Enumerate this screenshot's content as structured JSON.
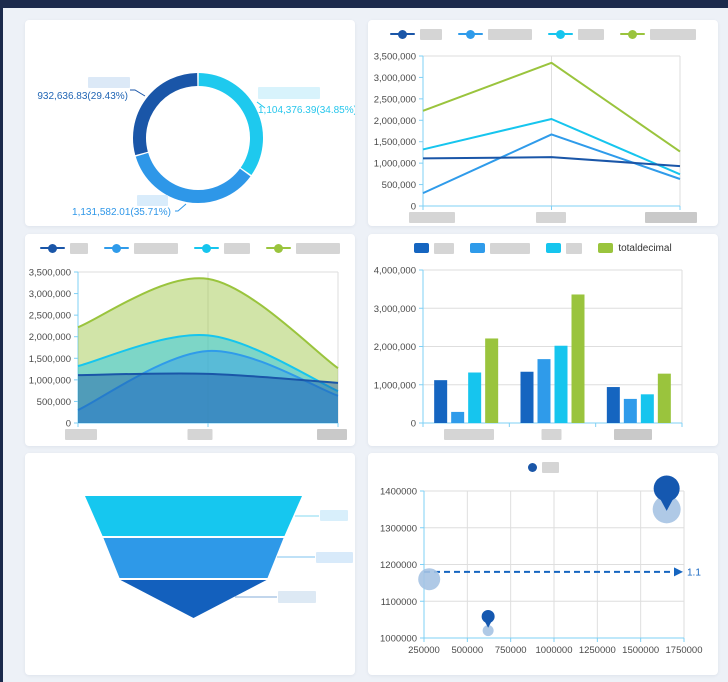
{
  "page": {
    "background": "#edf1f7",
    "topbar_color": "#1b2a4c"
  },
  "palette": {
    "navy": "#1a56a8",
    "bar_navy": "#1565c0",
    "blue": "#2f9bea",
    "cyan": "#16c5ee",
    "green": "#9ac43d",
    "axis": "#7fd0f5",
    "grid": "#dedede",
    "tick_text": "#4a4a4a",
    "point_fill": "#a6c3e3",
    "pin_fill": "#1558b0",
    "markline_color": "#1565c0"
  },
  "chart_data": [
    {
      "id": "donut",
      "type": "pie",
      "legend_position": "none",
      "slices": [
        {
          "name_redacted": true,
          "value": 1104376.39,
          "pct": 34.85,
          "label_text": "1,104,376.39(34.85%)",
          "color": "#1ec9ee",
          "label_color": "#27c6ec"
        },
        {
          "name_redacted": true,
          "value": 1131582.01,
          "pct": 35.71,
          "label_text": "1,131,582.01(35.71%)",
          "color": "#2e97e8",
          "label_color": "#2f97e8"
        },
        {
          "name_redacted": true,
          "value": 932636.83,
          "pct": 29.43,
          "label_text": "932,636.83(29.43%)",
          "color": "#1a56a8",
          "label_color": "#2166b5"
        }
      ]
    },
    {
      "id": "line",
      "type": "line",
      "ylim": [
        0,
        3500000
      ],
      "y_ticks": [
        "3,500,000",
        "3,000,000",
        "2,500,000",
        "2,000,000",
        "1,500,000",
        "1,000,000",
        "500,000",
        "0"
      ],
      "categories_redacted": [
        46,
        30,
        52
      ],
      "legend": [
        {
          "color": "#1a56a8",
          "redacted_w": 22
        },
        {
          "color": "#2f9bea",
          "redacted_w": 44
        },
        {
          "color": "#16c5ee",
          "redacted_w": 26
        },
        {
          "color": "#9ac43d",
          "redacted_w": 46
        }
      ],
      "series": [
        {
          "name": "navy",
          "color": "#1a56a8",
          "values": [
            1110000,
            1140000,
            930000
          ]
        },
        {
          "name": "blue",
          "color": "#2f9bea",
          "values": [
            300000,
            1670000,
            630000
          ]
        },
        {
          "name": "cyan",
          "color": "#16c5ee",
          "values": [
            1320000,
            2030000,
            740000
          ]
        },
        {
          "name": "green",
          "color": "#9ac43d",
          "values": [
            2220000,
            3340000,
            1270000
          ]
        }
      ]
    },
    {
      "id": "area",
      "type": "area",
      "ylim": [
        0,
        3500000
      ],
      "y_ticks": [
        "3,500,000",
        "3,000,000",
        "2,500,000",
        "2,000,000",
        "1,500,000",
        "1,000,000",
        "500,000",
        "0"
      ],
      "categories_redacted": [
        32,
        25,
        30
      ],
      "legend": [
        {
          "color": "#1a56a8",
          "redacted_w": 18
        },
        {
          "color": "#2f9bea",
          "redacted_w": 44
        },
        {
          "color": "#16c5ee",
          "redacted_w": 26
        },
        {
          "color": "#9ac43d",
          "redacted_w": 44
        }
      ],
      "series": [
        {
          "name": "navy",
          "color": "#1a56a8",
          "values": [
            1110000,
            1140000,
            930000
          ]
        },
        {
          "name": "blue",
          "color": "#2f9bea",
          "values": [
            300000,
            1670000,
            630000
          ]
        },
        {
          "name": "cyan",
          "color": "#16c5ee",
          "values": [
            1320000,
            2030000,
            740000
          ]
        },
        {
          "name": "green",
          "color": "#9ac43d",
          "values": [
            2220000,
            3340000,
            1270000
          ]
        }
      ]
    },
    {
      "id": "bar",
      "type": "bar",
      "ylim": [
        0,
        4000000
      ],
      "y_ticks": [
        "4,000,000",
        "3,000,000",
        "2,000,000",
        "1,000,000",
        "0"
      ],
      "categories_redacted": [
        50,
        20,
        38
      ],
      "legend": [
        {
          "color": "#1565c0",
          "redacted_w": 20
        },
        {
          "color": "#2f9bea",
          "redacted_w": 40
        },
        {
          "color": "#16c5ee",
          "redacted_w": 16
        },
        {
          "color": "#9ac43d",
          "label": "totaldecimal"
        }
      ],
      "series": [
        {
          "name": "navy",
          "color": "#1565c0",
          "values": [
            1120000,
            1340000,
            940000
          ]
        },
        {
          "name": "blue",
          "color": "#2f9bea",
          "values": [
            290000,
            1670000,
            630000
          ]
        },
        {
          "name": "cyan",
          "color": "#16c5ee",
          "values": [
            1320000,
            2020000,
            750000
          ]
        },
        {
          "name": "green",
          "color": "#9ac43d",
          "values": [
            2210000,
            3360000,
            1290000
          ]
        }
      ]
    },
    {
      "id": "funnel",
      "type": "funnel",
      "levels": [
        {
          "color": "#16c7ef",
          "top_ratio": 1.0,
          "bottom_ratio": 0.838,
          "label_redacted_w": 28
        },
        {
          "color": "#2e99e8",
          "top_ratio": 0.83,
          "bottom_ratio": 0.682,
          "label_redacted_w": 37
        },
        {
          "color": "#1360bd",
          "top_ratio": 0.673,
          "bottom_ratio": 0.0,
          "label_redacted_w": 38
        }
      ]
    },
    {
      "id": "scatter",
      "type": "scatter",
      "xlim": [
        250000,
        1750000
      ],
      "ylim": [
        1000000,
        1400000
      ],
      "x_ticks": [
        "250000",
        "500000",
        "750000",
        "1000000",
        "1250000",
        "1500000",
        "1750000"
      ],
      "y_ticks": [
        "1400000",
        "1300000",
        "1200000",
        "1100000",
        "1000000"
      ],
      "legend": [
        {
          "color": "#1a56a8",
          "redacted_w": 17
        }
      ],
      "points": [
        {
          "x": 280000,
          "y": 1160000,
          "r": 11
        },
        {
          "x": 620000,
          "y": 1020000,
          "r": 5.5
        },
        {
          "x": 1650000,
          "y": 1350000,
          "r": 14
        }
      ],
      "pins": [
        {
          "x": 620000,
          "y": 1028000,
          "r": 6.5
        },
        {
          "x": 1650000,
          "y": 1346000,
          "r": 13
        }
      ],
      "markline": {
        "value": 1180000,
        "label": "1.1"
      }
    }
  ]
}
